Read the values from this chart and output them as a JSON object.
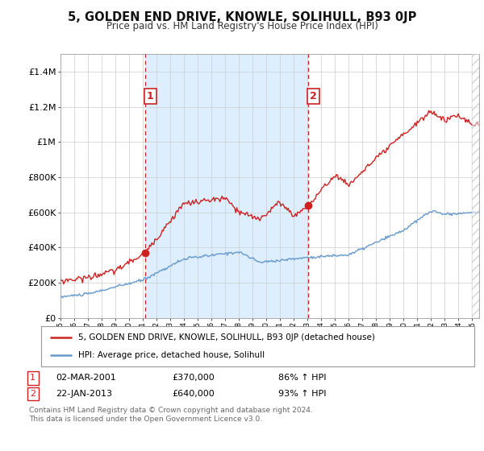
{
  "title": "5, GOLDEN END DRIVE, KNOWLE, SOLIHULL, B93 0JP",
  "subtitle": "Price paid vs. HM Land Registry's House Price Index (HPI)",
  "background_color": "#ffffff",
  "plot_bg_color": "#ffffff",
  "shade_color": "#ddeeff",
  "grid_color": "#cccccc",
  "hpi_line_color": "#6699cc",
  "price_line_color": "#cc2222",
  "sale1_date_num": 2001.17,
  "sale2_date_num": 2013.06,
  "sale1_price": 370000,
  "sale2_price": 640000,
  "legend_label1": "5, GOLDEN END DRIVE, KNOWLE, SOLIHULL, B93 0JP (detached house)",
  "legend_label2": "HPI: Average price, detached house, Solihull",
  "table_row1": [
    "1",
    "02-MAR-2001",
    "£370,000",
    "86% ↑ HPI"
  ],
  "table_row2": [
    "2",
    "22-JAN-2013",
    "£640,000",
    "93% ↑ HPI"
  ],
  "footer": "Contains HM Land Registry data © Crown copyright and database right 2024.\nThis data is licensed under the Open Government Licence v3.0.",
  "xmin": 1995.0,
  "xmax": 2025.5,
  "ymin": 0,
  "ymax": 1500000
}
